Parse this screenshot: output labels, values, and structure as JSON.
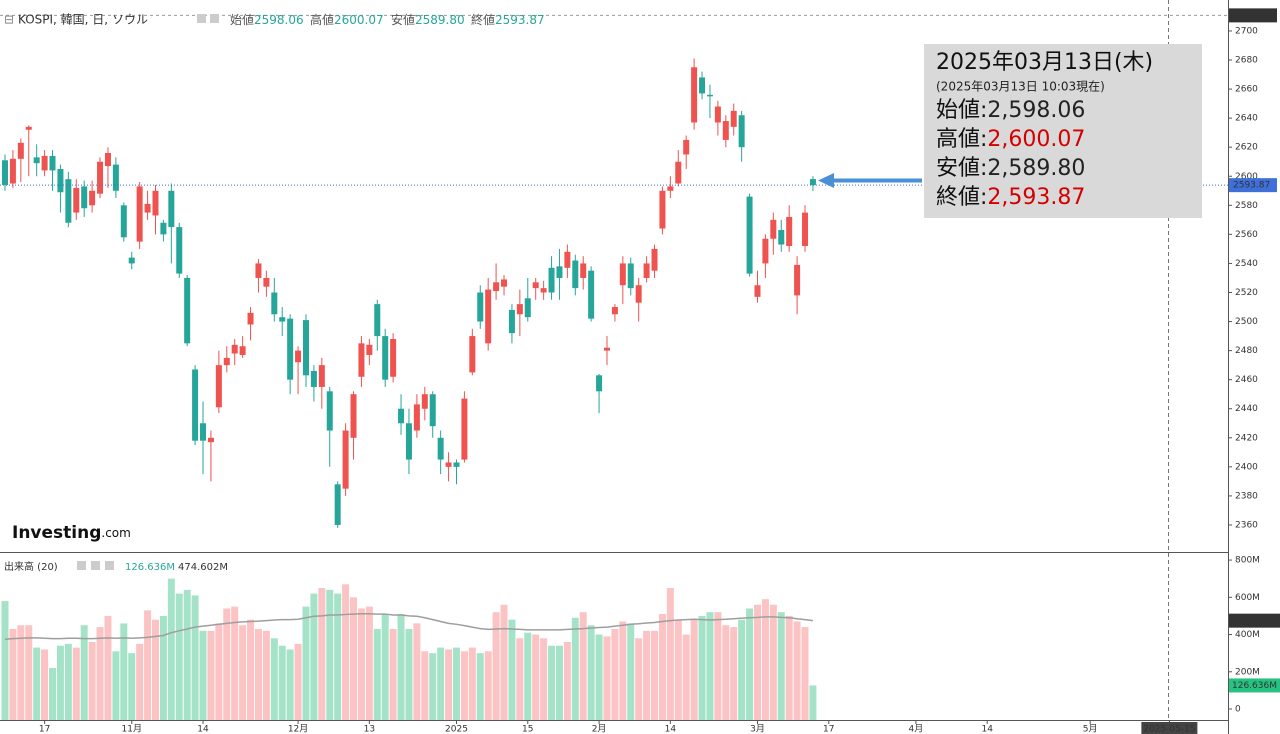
{
  "chart_data": {
    "type": "candlestick",
    "title": "KOSPI, 韓国, 日, ソウル",
    "header_items": [
      {
        "label": "始値",
        "value": "2598.06"
      },
      {
        "label": "高値",
        "value": "2600.07"
      },
      {
        "label": "安値",
        "value": "2589.80"
      },
      {
        "label": "終値",
        "value": "2593.87"
      }
    ],
    "info_box": {
      "title": "2025年03月13日(木)",
      "subtitle": "(2025年03月13日 10:03現在)",
      "rows": [
        {
          "label": "始値:",
          "value": "2,598.06",
          "color": "#222222"
        },
        {
          "label": "高値:",
          "value": "2,600.07",
          "color": "#d40000"
        },
        {
          "label": "安値:",
          "value": "2,589.80",
          "color": "#222222"
        },
        {
          "label": "終値:",
          "value": "2,593.87",
          "color": "#d40000"
        }
      ]
    },
    "logo": [
      "Investing",
      ".com"
    ],
    "up_color": "#ef5350",
    "down_color": "#26a69a",
    "volume_up_color": "#fbc3c3",
    "volume_down_color": "#a5e3c8",
    "ma_color": "#9e9e9e",
    "open": [
      2611,
      2595,
      2612,
      2632,
      2613,
      2604,
      2614,
      2605,
      2598,
      2575,
      2593,
      2580,
      2588,
      2607,
      2608,
      2580,
      2544,
      2555,
      2575,
      2573,
      2568,
      2590,
      2565,
      2530,
      2467,
      2430,
      2417,
      2441,
      2470,
      2478,
      2477,
      2498,
      2530,
      2524,
      2520,
      2503,
      2502,
      2472,
      2501,
      2466,
      2455,
      2452,
      2388,
      2385,
      2420,
      2462,
      2477,
      2512,
      2490,
      2462,
      2440,
      2430,
      2425,
      2440,
      2450,
      2420,
      2400,
      2403,
      2405,
      2465,
      2520,
      2485,
      2521,
      2524,
      2508,
      2505,
      2516,
      2523,
      2520,
      2537,
      2538,
      2537,
      2542,
      2530,
      2535,
      2463,
      2480,
      2505,
      2525,
      2540,
      2513,
      2530,
      2535,
      2564,
      2590,
      2595,
      2615,
      2637,
      2668,
      2656,
      2637,
      2625,
      2634,
      2642,
      2586,
      2517,
      2540,
      2557,
      2563,
      2552,
      2518,
      2552,
      2598.06
    ],
    "high": [
      2615,
      2618,
      2626,
      2635,
      2622,
      2618,
      2618,
      2608,
      2603,
      2598,
      2597,
      2597,
      2613,
      2620,
      2613,
      2582,
      2548,
      2596,
      2590,
      2594,
      2570,
      2595,
      2568,
      2532,
      2470,
      2445,
      2425,
      2480,
      2483,
      2488,
      2490,
      2510,
      2543,
      2535,
      2530,
      2510,
      2505,
      2483,
      2505,
      2470,
      2475,
      2455,
      2390,
      2430,
      2452,
      2490,
      2488,
      2515,
      2495,
      2492,
      2450,
      2440,
      2450,
      2455,
      2452,
      2425,
      2410,
      2405,
      2452,
      2495,
      2525,
      2530,
      2540,
      2532,
      2512,
      2522,
      2530,
      2530,
      2528,
      2545,
      2550,
      2553,
      2546,
      2545,
      2538,
      2464,
      2490,
      2512,
      2545,
      2544,
      2530,
      2545,
      2553,
      2593,
      2600,
      2618,
      2628,
      2681,
      2672,
      2663,
      2652,
      2642,
      2650,
      2645,
      2588,
      2535,
      2560,
      2575,
      2570,
      2580,
      2545,
      2580,
      2600.07
    ],
    "low": [
      2590,
      2592,
      2596,
      2600,
      2600,
      2600,
      2590,
      2575,
      2565,
      2570,
      2572,
      2575,
      2585,
      2592,
      2585,
      2555,
      2536,
      2550,
      2570,
      2560,
      2555,
      2540,
      2530,
      2483,
      2415,
      2395,
      2390,
      2437,
      2465,
      2470,
      2475,
      2487,
      2520,
      2517,
      2500,
      2490,
      2450,
      2450,
      2455,
      2445,
      2440,
      2400,
      2358,
      2380,
      2405,
      2455,
      2470,
      2480,
      2455,
      2458,
      2422,
      2395,
      2420,
      2432,
      2420,
      2395,
      2390,
      2388,
      2403,
      2463,
      2495,
      2480,
      2515,
      2518,
      2485,
      2490,
      2500,
      2515,
      2515,
      2515,
      2515,
      2530,
      2518,
      2522,
      2500,
      2437,
      2470,
      2500,
      2512,
      2518,
      2500,
      2527,
      2530,
      2560,
      2585,
      2593,
      2605,
      2632,
      2653,
      2640,
      2628,
      2620,
      2628,
      2610,
      2531,
      2513,
      2530,
      2546,
      2548,
      2548,
      2505,
      2548,
      2589.8
    ],
    "close": [
      2594,
      2612,
      2623,
      2634,
      2609,
      2614,
      2604,
      2589,
      2568,
      2592,
      2578,
      2590,
      2610,
      2616,
      2590,
      2558,
      2540,
      2593,
      2581,
      2590,
      2560,
      2565,
      2533,
      2485,
      2418,
      2418,
      2420,
      2470,
      2475,
      2484,
      2483,
      2506,
      2540,
      2530,
      2505,
      2500,
      2460,
      2480,
      2463,
      2455,
      2470,
      2425,
      2360,
      2425,
      2450,
      2485,
      2484,
      2490,
      2460,
      2488,
      2430,
      2405,
      2443,
      2450,
      2428,
      2405,
      2403,
      2400,
      2447,
      2490,
      2500,
      2522,
      2527,
      2529,
      2492,
      2512,
      2503,
      2527,
      2523,
      2520,
      2530,
      2548,
      2523,
      2540,
      2502,
      2452,
      2482,
      2510,
      2540,
      2523,
      2525,
      2540,
      2550,
      2590,
      2593,
      2610,
      2625,
      2675,
      2657,
      2655,
      2648,
      2638,
      2645,
      2620,
      2533,
      2525,
      2557,
      2570,
      2553,
      2572,
      2539,
      2575,
      2593.87
    ],
    "volume": [
      580,
      430,
      450,
      450,
      330,
      320,
      220,
      340,
      350,
      330,
      450,
      360,
      440,
      500,
      310,
      460,
      300,
      350,
      530,
      480,
      500,
      700,
      620,
      640,
      610,
      420,
      420,
      460,
      540,
      550,
      450,
      480,
      430,
      420,
      380,
      340,
      320,
      350,
      550,
      620,
      650,
      640,
      620,
      670,
      600,
      540,
      550,
      430,
      510,
      430,
      510,
      430,
      460,
      310,
      300,
      330,
      320,
      330,
      310,
      330,
      300,
      310,
      520,
      560,
      480,
      380,
      410,
      400,
      380,
      340,
      340,
      360,
      490,
      520,
      450,
      400,
      390,
      430,
      470,
      460,
      380,
      420,
      420,
      510,
      650,
      480,
      400,
      480,
      500,
      520,
      520,
      450,
      440,
      480,
      540,
      560,
      590,
      560,
      520,
      500,
      470,
      440,
      126.636
    ],
    "volume_ma_name": "出来高 (20)",
    "volume_ma": [
      375,
      378,
      380,
      382,
      382,
      380,
      378,
      378,
      380,
      380,
      378,
      378,
      380,
      382,
      380,
      382,
      380,
      382,
      385,
      390,
      395,
      410,
      420,
      430,
      440,
      445,
      450,
      455,
      460,
      465,
      468,
      470,
      472,
      475,
      478,
      480,
      480,
      482,
      490,
      498,
      500,
      505,
      505,
      508,
      510,
      512,
      512,
      510,
      510,
      505,
      505,
      500,
      498,
      490,
      480,
      470,
      460,
      455,
      448,
      440,
      432,
      428,
      430,
      432,
      430,
      428,
      425,
      425,
      425,
      425,
      425,
      428,
      430,
      432,
      435,
      438,
      440,
      445,
      450,
      455,
      458,
      462,
      465,
      470,
      475,
      478,
      480,
      482,
      480,
      478,
      480,
      482,
      485,
      488,
      490,
      492,
      495,
      495,
      492,
      490,
      485,
      480,
      474.602
    ],
    "volume_markers": [
      {
        "value": 126.636,
        "label": "126.636M"
      },
      {
        "value": 474.602,
        "label": "474.602M"
      }
    ],
    "max_marker": 2710.72,
    "ylim": [
      2341.4,
      2721.3
    ],
    "yticks": [
      2360,
      2380,
      2400,
      2420,
      2440,
      2460,
      2480,
      2500,
      2520,
      2540,
      2560,
      2580,
      2600,
      2620,
      2640,
      2660,
      2680,
      2700
    ],
    "y2lim": [
      -59,
      838
    ],
    "y2ticks": [
      0,
      {
        "value": 200,
        "label": "200M"
      },
      {
        "value": 400,
        "label": "400M"
      },
      {
        "value": 600,
        "label": "600M"
      },
      {
        "value": 800,
        "label": "800M"
      }
    ],
    "xlim": [
      -0.63,
      154.4
    ],
    "xticks": [
      {
        "value": 5,
        "label": "17"
      },
      {
        "value": 16,
        "label": "11月"
      },
      {
        "value": 25,
        "label": "14"
      },
      {
        "value": 37,
        "label": "12月"
      },
      {
        "value": 46,
        "label": "13"
      },
      {
        "value": 57,
        "label": "2025"
      },
      {
        "value": 66,
        "label": "15"
      },
      {
        "value": 75,
        "label": "2月"
      },
      {
        "value": 84,
        "label": "14"
      },
      {
        "value": 95,
        "label": "3月"
      },
      {
        "value": 104,
        "label": "17"
      },
      {
        "value": 115,
        "label": "4月"
      },
      {
        "value": 124,
        "label": "14"
      },
      {
        "value": 137,
        "label": "5月"
      },
      {
        "value": 147,
        "label": "2025-05-15"
      }
    ]
  }
}
